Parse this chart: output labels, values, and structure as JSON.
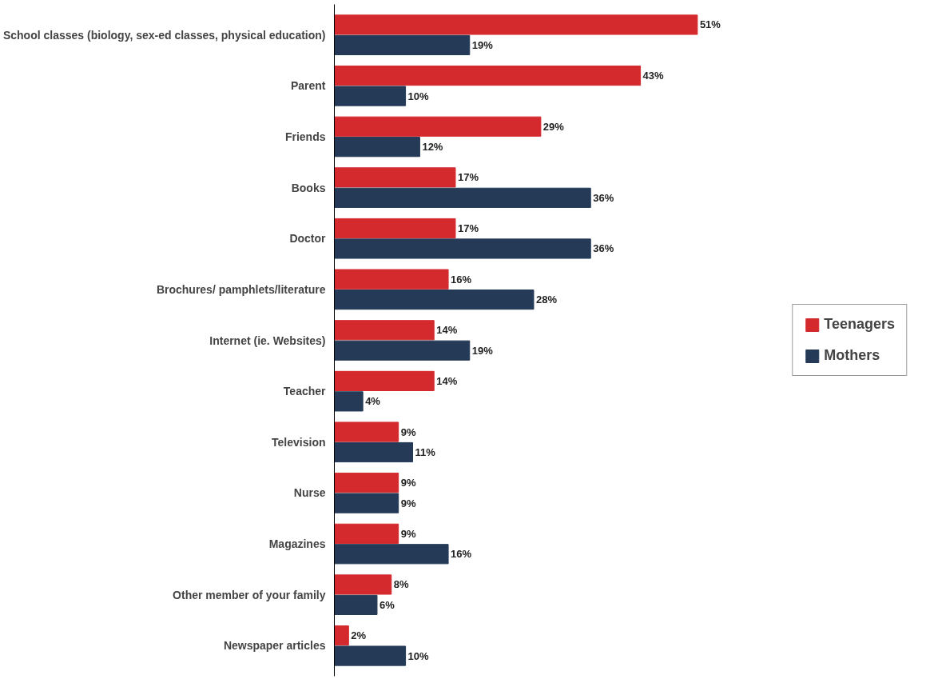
{
  "chart_data": {
    "type": "bar",
    "orientation": "horizontal",
    "categories": [
      "School classes (biology, sex-ed classes, physical education)",
      "Parent",
      "Friends",
      "Books",
      "Doctor",
      "Brochures/ pamphlets/literature",
      "Internet (ie. Websites)",
      "Teacher",
      "Television",
      "Nurse",
      "Magazines",
      "Other member of your family",
      "Newspaper articles"
    ],
    "series": [
      {
        "name": "Teenagers",
        "color": "#d42a2e",
        "values": [
          51,
          43,
          29,
          17,
          17,
          16,
          14,
          14,
          9,
          9,
          9,
          8,
          2
        ],
        "value_labels": [
          "51%",
          "43%",
          "29%",
          "17%",
          "17%",
          "16%",
          "14%",
          "14%",
          "9%",
          "9%",
          "9%",
          "8%",
          "2%"
        ]
      },
      {
        "name": "Mothers",
        "color": "#253a56",
        "values": [
          19,
          10,
          12,
          36,
          36,
          28,
          19,
          4,
          11,
          9,
          16,
          6,
          10
        ],
        "value_labels": [
          "19%",
          "10%",
          "12%",
          "36%",
          "36%",
          "28%",
          "19%",
          "4%",
          "11%",
          "9%",
          "16%",
          "6%",
          "10%"
        ]
      }
    ],
    "legend": "right",
    "grid": false
  }
}
